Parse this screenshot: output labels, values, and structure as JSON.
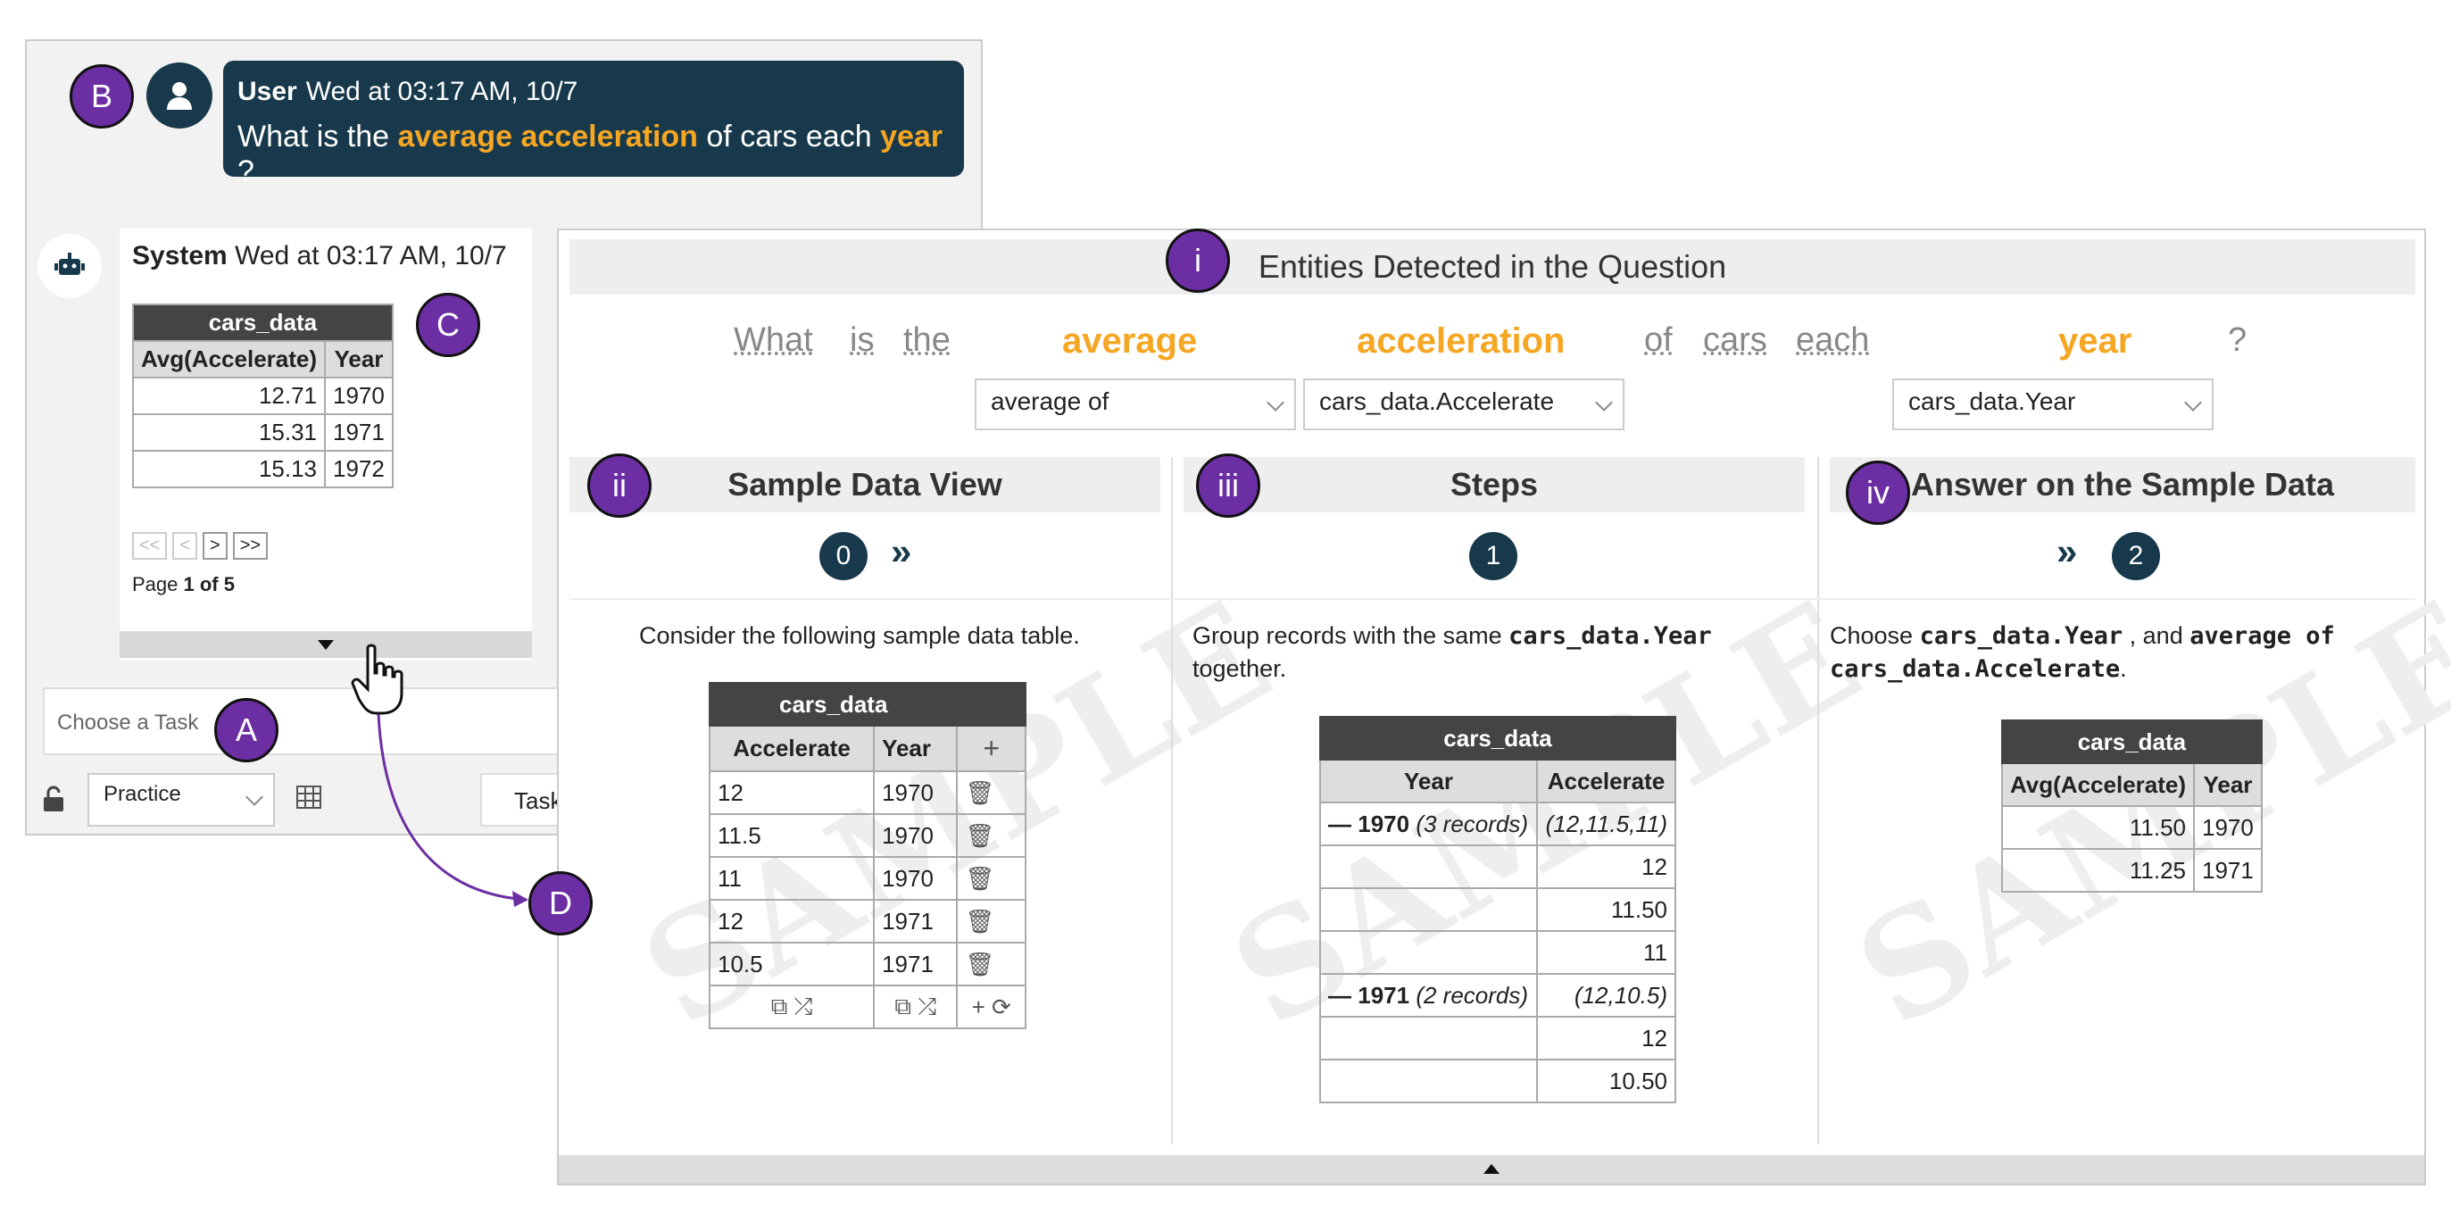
{
  "badges": {
    "a": "A",
    "b": "B",
    "c": "C",
    "d": "D",
    "i": "i",
    "ii": "ii",
    "iii": "iii",
    "iv": "iv"
  },
  "user_msg": {
    "name": "User",
    "time": "Wed at 03:17 AM, 10/7",
    "q_pre": "What is the ",
    "q_h1": "average acceleration",
    "q_mid": " of cars each ",
    "q_h2": "year",
    "q_end": " ?"
  },
  "system_msg": {
    "name": "System",
    "time": "Wed at 03:17 AM, 10/7",
    "table": {
      "caption": "cars_data",
      "headers": [
        "Avg(Accelerate)",
        "Year"
      ],
      "rows": [
        [
          "12.71",
          "1970"
        ],
        [
          "15.31",
          "1971"
        ],
        [
          "15.13",
          "1972"
        ]
      ]
    },
    "pager": {
      "first": "<<",
      "prev": "<",
      "next": ">",
      "last": ">>",
      "page_prefix": "Page ",
      "page_value": "1 of 5"
    }
  },
  "task": {
    "placeholder": "Choose a Task",
    "mode": "Practice",
    "task_btn": "Task"
  },
  "entities": {
    "title": "Entities Detected in the Question",
    "words": [
      "What",
      "is",
      "the",
      "average",
      "acceleration",
      "of",
      "cars",
      "each",
      "year",
      "?"
    ],
    "dropdowns": [
      "average of",
      "cars_data.Accelerate",
      "cars_data.Year"
    ]
  },
  "sample": {
    "title": "Sample Data View",
    "step": "0",
    "desc": "Consider the following sample data table.",
    "table": {
      "caption": "cars_data",
      "headers": [
        "Accelerate",
        "Year"
      ],
      "add": "+",
      "rows": [
        [
          "12",
          "1970"
        ],
        [
          "11.5",
          "1970"
        ],
        [
          "11",
          "1970"
        ],
        [
          "12",
          "1971"
        ],
        [
          "10.5",
          "1971"
        ]
      ]
    }
  },
  "steps": {
    "title": "Steps",
    "step": "1",
    "desc_pre": "Group records with the same ",
    "desc_code": "cars_data.Year",
    "desc_post": "together.",
    "table": {
      "caption": "cars_data",
      "headers": [
        "Year",
        "Accelerate"
      ],
      "g1": {
        "label": "1970",
        "count": "(3 records)",
        "vals": "(12,11.5,11)",
        "rows": [
          "12",
          "11.50",
          "11"
        ]
      },
      "g2": {
        "label": "1971",
        "count": "(2 records)",
        "vals": "(12,10.5)",
        "rows": [
          "12",
          "10.50"
        ]
      }
    }
  },
  "answer": {
    "title": "Answer on the Sample Data",
    "step": "2",
    "desc_pre": "Choose ",
    "code1": "cars_data.Year",
    "mid": " , and ",
    "code2": "average of cars_data.Accelerate",
    "end": ".",
    "table": {
      "caption": "cars_data",
      "headers": [
        "Avg(Accelerate)",
        "Year"
      ],
      "rows": [
        [
          "11.50",
          "1970"
        ],
        [
          "11.25",
          "1971"
        ]
      ]
    }
  },
  "watermark": "SAMPLE",
  "colors": {
    "accent": "#f5a623",
    "dark": "#17394b",
    "badge": "#6b2ea3"
  }
}
